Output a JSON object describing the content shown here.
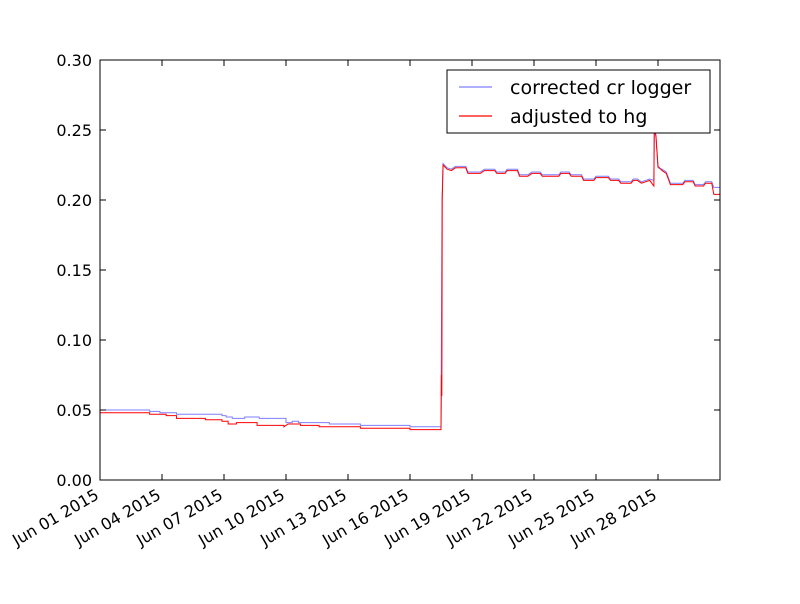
{
  "chart_data": {
    "type": "line",
    "title": "",
    "xlabel": "",
    "ylabel": "",
    "x_unit": "days since Jun 01 2015",
    "xlim": [
      0,
      30
    ],
    "ylim": [
      0.0,
      0.3
    ],
    "grid": false,
    "legend_placement": "top-right",
    "y_ticks": [
      {
        "value": 0.0,
        "label": "0.00"
      },
      {
        "value": 0.05,
        "label": "0.05"
      },
      {
        "value": 0.1,
        "label": "0.10"
      },
      {
        "value": 0.15,
        "label": "0.15"
      },
      {
        "value": 0.2,
        "label": "0.20"
      },
      {
        "value": 0.25,
        "label": "0.25"
      },
      {
        "value": 0.3,
        "label": "0.30"
      }
    ],
    "x_ticks": [
      {
        "value": 0,
        "label": "Jun 01 2015"
      },
      {
        "value": 3,
        "label": "Jun 04 2015"
      },
      {
        "value": 6,
        "label": "Jun 07 2015"
      },
      {
        "value": 9,
        "label": "Jun 10 2015"
      },
      {
        "value": 12,
        "label": "Jun 13 2015"
      },
      {
        "value": 15,
        "label": "Jun 16 2015"
      },
      {
        "value": 18,
        "label": "Jun 19 2015"
      },
      {
        "value": 21,
        "label": "Jun 22 2015"
      },
      {
        "value": 24,
        "label": "Jun 25 2015"
      },
      {
        "value": 27,
        "label": "Jun 28 2015"
      }
    ],
    "series": [
      {
        "name": "corrected cr logger",
        "color": "#7f7fff",
        "points": [
          [
            0,
            0.05
          ],
          [
            2.4,
            0.05
          ],
          [
            2.4,
            0.049
          ],
          [
            2.9,
            0.049
          ],
          [
            2.9,
            0.048
          ],
          [
            3.7,
            0.048
          ],
          [
            3.7,
            0.047
          ],
          [
            5.9,
            0.047
          ],
          [
            5.9,
            0.046
          ],
          [
            6.1,
            0.046
          ],
          [
            6.1,
            0.045
          ],
          [
            6.4,
            0.045
          ],
          [
            6.4,
            0.044
          ],
          [
            7.0,
            0.044
          ],
          [
            7.0,
            0.045
          ],
          [
            7.7,
            0.045
          ],
          [
            7.7,
            0.044
          ],
          [
            9.0,
            0.044
          ],
          [
            9.0,
            0.041
          ],
          [
            9.3,
            0.041
          ],
          [
            9.3,
            0.042
          ],
          [
            9.6,
            0.042
          ],
          [
            9.6,
            0.041
          ],
          [
            11.1,
            0.041
          ],
          [
            11.1,
            0.04
          ],
          [
            12.6,
            0.04
          ],
          [
            12.6,
            0.039
          ],
          [
            15.0,
            0.039
          ],
          [
            15.0,
            0.038
          ],
          [
            16.5,
            0.038
          ],
          [
            16.55,
            0.2
          ],
          [
            16.6,
            0.226
          ],
          [
            16.8,
            0.223
          ],
          [
            17.0,
            0.222
          ],
          [
            17.2,
            0.224
          ],
          [
            17.7,
            0.224
          ],
          [
            17.8,
            0.22
          ],
          [
            18.4,
            0.22
          ],
          [
            18.6,
            0.222
          ],
          [
            19.1,
            0.222
          ],
          [
            19.2,
            0.22
          ],
          [
            19.6,
            0.22
          ],
          [
            19.7,
            0.222
          ],
          [
            20.2,
            0.222
          ],
          [
            20.3,
            0.218
          ],
          [
            20.7,
            0.218
          ],
          [
            20.9,
            0.22
          ],
          [
            21.3,
            0.22
          ],
          [
            21.4,
            0.218
          ],
          [
            22.2,
            0.218
          ],
          [
            22.3,
            0.22
          ],
          [
            22.7,
            0.22
          ],
          [
            22.8,
            0.218
          ],
          [
            23.3,
            0.218
          ],
          [
            23.4,
            0.215
          ],
          [
            23.9,
            0.215
          ],
          [
            24.0,
            0.217
          ],
          [
            24.6,
            0.217
          ],
          [
            24.7,
            0.215
          ],
          [
            25.1,
            0.215
          ],
          [
            25.2,
            0.213
          ],
          [
            25.7,
            0.213
          ],
          [
            25.8,
            0.215
          ],
          [
            26.0,
            0.215
          ],
          [
            26.2,
            0.213
          ],
          [
            26.6,
            0.215
          ],
          [
            26.8,
            0.214
          ],
          [
            26.82,
            0.25
          ],
          [
            26.9,
            0.245
          ],
          [
            27.0,
            0.223
          ],
          [
            27.2,
            0.222
          ],
          [
            27.4,
            0.22
          ],
          [
            27.5,
            0.216
          ],
          [
            27.6,
            0.212
          ],
          [
            28.2,
            0.212
          ],
          [
            28.3,
            0.214
          ],
          [
            28.7,
            0.214
          ],
          [
            28.8,
            0.211
          ],
          [
            29.2,
            0.211
          ],
          [
            29.3,
            0.213
          ],
          [
            29.6,
            0.213
          ],
          [
            29.7,
            0.209
          ],
          [
            30.0,
            0.209
          ]
        ]
      },
      {
        "name": "adjusted to hg",
        "color": "#ff0000",
        "points": [
          [
            0,
            0.048
          ],
          [
            2.4,
            0.048
          ],
          [
            2.4,
            0.047
          ],
          [
            3.2,
            0.047
          ],
          [
            3.2,
            0.046
          ],
          [
            3.7,
            0.046
          ],
          [
            3.7,
            0.044
          ],
          [
            5.1,
            0.044
          ],
          [
            5.1,
            0.043
          ],
          [
            5.9,
            0.043
          ],
          [
            5.9,
            0.042
          ],
          [
            6.2,
            0.042
          ],
          [
            6.2,
            0.04
          ],
          [
            6.6,
            0.04
          ],
          [
            6.6,
            0.041
          ],
          [
            7.6,
            0.041
          ],
          [
            7.6,
            0.039
          ],
          [
            8.9,
            0.039
          ],
          [
            8.9,
            0.038
          ],
          [
            9.1,
            0.04
          ],
          [
            9.7,
            0.04
          ],
          [
            9.7,
            0.039
          ],
          [
            10.6,
            0.039
          ],
          [
            10.6,
            0.038
          ],
          [
            12.6,
            0.038
          ],
          [
            12.6,
            0.037
          ],
          [
            15.0,
            0.037
          ],
          [
            15.0,
            0.036
          ],
          [
            16.5,
            0.036
          ],
          [
            16.52,
            0.075
          ],
          [
            16.54,
            0.06
          ],
          [
            16.56,
            0.2
          ],
          [
            16.6,
            0.225
          ],
          [
            16.8,
            0.222
          ],
          [
            17.0,
            0.221
          ],
          [
            17.2,
            0.223
          ],
          [
            17.7,
            0.223
          ],
          [
            17.8,
            0.219
          ],
          [
            18.4,
            0.219
          ],
          [
            18.6,
            0.221
          ],
          [
            19.1,
            0.221
          ],
          [
            19.2,
            0.219
          ],
          [
            19.6,
            0.219
          ],
          [
            19.7,
            0.221
          ],
          [
            20.2,
            0.221
          ],
          [
            20.3,
            0.217
          ],
          [
            20.7,
            0.217
          ],
          [
            20.9,
            0.219
          ],
          [
            21.3,
            0.219
          ],
          [
            21.4,
            0.217
          ],
          [
            22.2,
            0.217
          ],
          [
            22.3,
            0.219
          ],
          [
            22.7,
            0.219
          ],
          [
            22.8,
            0.217
          ],
          [
            23.3,
            0.217
          ],
          [
            23.4,
            0.214
          ],
          [
            23.9,
            0.214
          ],
          [
            24.0,
            0.216
          ],
          [
            24.6,
            0.216
          ],
          [
            24.7,
            0.214
          ],
          [
            25.1,
            0.214
          ],
          [
            25.2,
            0.212
          ],
          [
            25.7,
            0.212
          ],
          [
            25.8,
            0.214
          ],
          [
            26.0,
            0.214
          ],
          [
            26.2,
            0.212
          ],
          [
            26.6,
            0.214
          ],
          [
            26.8,
            0.21
          ],
          [
            26.82,
            0.252
          ],
          [
            26.9,
            0.246
          ],
          [
            27.0,
            0.224
          ],
          [
            27.2,
            0.221
          ],
          [
            27.4,
            0.219
          ],
          [
            27.5,
            0.215
          ],
          [
            27.6,
            0.211
          ],
          [
            28.2,
            0.211
          ],
          [
            28.3,
            0.213
          ],
          [
            28.7,
            0.213
          ],
          [
            28.8,
            0.21
          ],
          [
            29.2,
            0.21
          ],
          [
            29.3,
            0.212
          ],
          [
            29.6,
            0.212
          ],
          [
            29.7,
            0.204
          ],
          [
            30.0,
            0.204
          ]
        ]
      }
    ]
  }
}
